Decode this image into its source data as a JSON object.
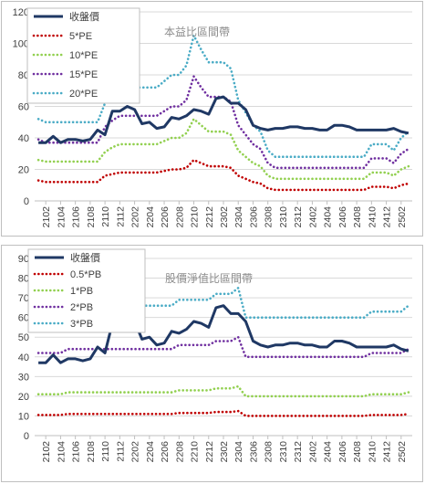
{
  "chart_data": [
    {
      "type": "line",
      "title": "本益比區間帶",
      "xlabel": "",
      "ylabel": "",
      "ylim": [
        0,
        120
      ],
      "yticks": [
        0,
        20,
        40,
        60,
        80,
        100,
        120
      ],
      "x": [
        "2101",
        "2102",
        "2103",
        "2104",
        "2105",
        "2106",
        "2107",
        "2108",
        "2109",
        "2110",
        "2111",
        "2112",
        "2201",
        "2202",
        "2203",
        "2204",
        "2205",
        "2206",
        "2207",
        "2208",
        "2209",
        "2210",
        "2211",
        "2212",
        "2301",
        "2302",
        "2303",
        "2304",
        "2305",
        "2306",
        "2307",
        "2308",
        "2309",
        "2310",
        "2311",
        "2312",
        "2401",
        "2402",
        "2403",
        "2404",
        "2405",
        "2406",
        "2407",
        "2408",
        "2409",
        "2410",
        "2411",
        "2412",
        "2501",
        "2502",
        "2503"
      ],
      "xtick_labels": [
        "2102",
        "2104",
        "2106",
        "2108",
        "2110",
        "2112",
        "2202",
        "2204",
        "2206",
        "2208",
        "2210",
        "2212",
        "2302",
        "2304",
        "2306",
        "2308",
        "2310",
        "2312",
        "2402",
        "2404",
        "2406",
        "2408",
        "2410",
        "2412",
        "2502"
      ],
      "grid": true,
      "legend_position": "top-left",
      "series": [
        {
          "name": "收盤價",
          "color": "#1f3864",
          "style": "solid",
          "values": [
            37,
            37,
            41,
            37,
            39,
            39,
            38,
            39,
            45,
            42,
            57,
            57,
            60,
            58,
            49,
            50,
            46,
            47,
            53,
            52,
            54,
            58,
            57,
            55,
            65,
            66,
            62,
            62,
            58,
            48,
            46,
            45,
            46,
            46,
            47,
            47,
            46,
            46,
            45,
            45,
            48,
            48,
            47,
            45,
            45,
            45,
            45,
            45,
            46,
            44,
            43
          ]
        },
        {
          "name": "5*PE",
          "color": "#c00000",
          "style": "dotted",
          "values": [
            13,
            12,
            12,
            12,
            12,
            12,
            12,
            12,
            12,
            16,
            17,
            18,
            18,
            18,
            18,
            18,
            18,
            19,
            20,
            20,
            21,
            26,
            24,
            22,
            22,
            22,
            21,
            16,
            14,
            12,
            11,
            8,
            7,
            7,
            7,
            7,
            7,
            7,
            7,
            7,
            7,
            7,
            7,
            7,
            7,
            9,
            9,
            9,
            8,
            10,
            11
          ]
        },
        {
          "name": "10*PE",
          "color": "#92d050",
          "style": "dotted",
          "values": [
            26,
            25,
            25,
            25,
            25,
            25,
            25,
            25,
            25,
            31,
            34,
            36,
            36,
            36,
            36,
            36,
            36,
            38,
            40,
            40,
            43,
            52,
            48,
            44,
            44,
            44,
            42,
            32,
            28,
            24,
            22,
            16,
            14,
            14,
            14,
            14,
            14,
            14,
            14,
            14,
            14,
            14,
            14,
            14,
            14,
            18,
            18,
            18,
            16,
            20,
            22
          ]
        },
        {
          "name": "15*PE",
          "color": "#7030a0",
          "style": "dotted",
          "values": [
            39,
            37,
            37,
            37,
            37,
            37,
            37,
            37,
            37,
            47,
            51,
            54,
            54,
            54,
            54,
            54,
            54,
            57,
            60,
            60,
            64,
            79,
            72,
            66,
            66,
            66,
            63,
            48,
            42,
            36,
            33,
            24,
            21,
            21,
            21,
            21,
            21,
            21,
            21,
            21,
            21,
            21,
            21,
            21,
            21,
            27,
            27,
            27,
            24,
            30,
            33
          ]
        },
        {
          "name": "20*PE",
          "color": "#4bacc6",
          "style": "dotted",
          "values": [
            52,
            50,
            50,
            50,
            50,
            50,
            50,
            50,
            50,
            62,
            68,
            72,
            72,
            72,
            72,
            72,
            72,
            76,
            80,
            80,
            86,
            105,
            96,
            88,
            88,
            88,
            84,
            64,
            56,
            48,
            44,
            32,
            28,
            28,
            28,
            28,
            28,
            28,
            28,
            28,
            28,
            28,
            28,
            28,
            28,
            36,
            36,
            36,
            32,
            40,
            44
          ]
        }
      ]
    },
    {
      "type": "line",
      "title": "股價淨值比區間帶",
      "xlabel": "",
      "ylabel": "",
      "ylim": [
        0,
        90
      ],
      "yticks": [
        0,
        10,
        20,
        30,
        40,
        50,
        60,
        70,
        80,
        90
      ],
      "x": [
        "2101",
        "2102",
        "2103",
        "2104",
        "2105",
        "2106",
        "2107",
        "2108",
        "2109",
        "2110",
        "2111",
        "2112",
        "2201",
        "2202",
        "2203",
        "2204",
        "2205",
        "2206",
        "2207",
        "2208",
        "2209",
        "2210",
        "2211",
        "2212",
        "2301",
        "2302",
        "2303",
        "2304",
        "2305",
        "2306",
        "2307",
        "2308",
        "2309",
        "2310",
        "2311",
        "2312",
        "2401",
        "2402",
        "2403",
        "2404",
        "2405",
        "2406",
        "2407",
        "2408",
        "2409",
        "2410",
        "2411",
        "2412",
        "2501",
        "2502",
        "2503"
      ],
      "xtick_labels": [
        "2102",
        "2104",
        "2106",
        "2108",
        "2110",
        "2112",
        "2202",
        "2204",
        "2206",
        "2208",
        "2210",
        "2212",
        "2302",
        "2304",
        "2306",
        "2308",
        "2310",
        "2312",
        "2402",
        "2404",
        "2406",
        "2408",
        "2410",
        "2412",
        "2502"
      ],
      "grid": true,
      "legend_position": "top-left",
      "series": [
        {
          "name": "收盤價",
          "color": "#1f3864",
          "style": "solid",
          "values": [
            37,
            37,
            41,
            37,
            39,
            39,
            38,
            39,
            45,
            42,
            57,
            57,
            60,
            58,
            49,
            50,
            46,
            47,
            53,
            52,
            54,
            58,
            57,
            55,
            65,
            66,
            62,
            62,
            58,
            48,
            46,
            45,
            46,
            46,
            47,
            47,
            46,
            46,
            45,
            45,
            48,
            48,
            47,
            45,
            45,
            45,
            45,
            45,
            46,
            44,
            43
          ]
        },
        {
          "name": "0.5*PB",
          "color": "#c00000",
          "style": "dotted",
          "values": [
            10.5,
            10.5,
            10.5,
            10.5,
            11,
            11,
            11,
            11,
            11,
            11,
            11,
            11,
            11,
            11,
            11,
            11,
            11,
            11,
            11,
            11.5,
            11.5,
            11.5,
            11.5,
            11.5,
            12,
            12,
            12,
            12.5,
            10,
            10,
            10,
            10,
            10,
            10,
            10,
            10,
            10,
            10,
            10,
            10,
            10,
            10,
            10,
            10,
            10,
            10.5,
            10.5,
            10.5,
            10.5,
            10.5,
            11
          ]
        },
        {
          "name": "1*PB",
          "color": "#92d050",
          "style": "dotted",
          "values": [
            21,
            21,
            21,
            21,
            22,
            22,
            22,
            22,
            22,
            22,
            22,
            22,
            22,
            22,
            22,
            22,
            22,
            22,
            22,
            23,
            23,
            23,
            23,
            23,
            24,
            24,
            24,
            25,
            20,
            20,
            20,
            20,
            20,
            20,
            20,
            20,
            20,
            20,
            20,
            20,
            20,
            20,
            20,
            20,
            20,
            21,
            21,
            21,
            21,
            21,
            22
          ]
        },
        {
          "name": "2*PB",
          "color": "#7030a0",
          "style": "dotted",
          "values": [
            42,
            42,
            42,
            42,
            44,
            44,
            44,
            44,
            44,
            44,
            44,
            44,
            44,
            44,
            44,
            44,
            44,
            44,
            44,
            46,
            46,
            46,
            46,
            46,
            48,
            48,
            48,
            50,
            40,
            40,
            40,
            40,
            40,
            40,
            40,
            40,
            40,
            40,
            40,
            40,
            40,
            40,
            40,
            40,
            40,
            42,
            42,
            42,
            42,
            42,
            44
          ]
        },
        {
          "name": "3*PB",
          "color": "#4bacc6",
          "style": "dotted",
          "values": [
            63,
            63,
            63,
            63,
            66,
            66,
            66,
            66,
            66,
            66,
            66,
            66,
            66,
            66,
            66,
            66,
            66,
            66,
            66,
            69,
            69,
            69,
            69,
            69,
            72,
            72,
            72,
            75,
            60,
            60,
            60,
            60,
            60,
            60,
            60,
            60,
            60,
            60,
            60,
            60,
            60,
            60,
            60,
            60,
            60,
            63,
            63,
            63,
            63,
            63,
            66
          ]
        }
      ]
    }
  ]
}
